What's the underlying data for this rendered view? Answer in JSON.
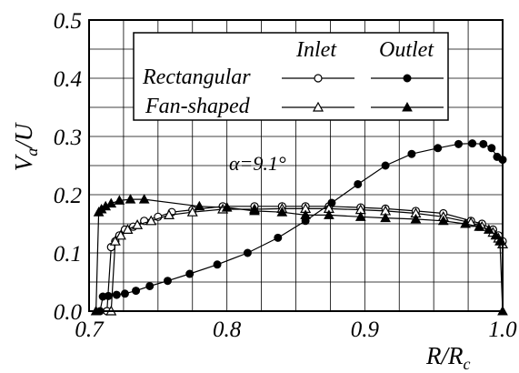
{
  "chart_data": {
    "type": "line",
    "title": "",
    "xlabel": {
      "main": "R/R",
      "sub": "c"
    },
    "ylabel": {
      "main": "V",
      "sub": "a",
      "rest": "/U"
    },
    "xlim": [
      0.7,
      1.0
    ],
    "ylim": [
      0.0,
      0.5
    ],
    "x_ticks": [
      "0.7",
      "0.8",
      "0.9",
      "1.0"
    ],
    "y_ticks": [
      "0.0",
      "0.1",
      "0.2",
      "0.3",
      "0.4",
      "0.5"
    ],
    "grid": true,
    "legend": {
      "placement": "top-center",
      "column_headers": [
        "Inlet",
        "Outlet"
      ],
      "row_labels": [
        "Rectangular",
        "Fan-shaped"
      ]
    },
    "annotation": "α=9.1°",
    "series": [
      {
        "name": "Rectangular Inlet",
        "marker": "open-circle",
        "points": [
          [
            0.713,
            0.0
          ],
          [
            0.716,
            0.11
          ],
          [
            0.719,
            0.12
          ],
          [
            0.722,
            0.13
          ],
          [
            0.726,
            0.14
          ],
          [
            0.732,
            0.145
          ],
          [
            0.74,
            0.155
          ],
          [
            0.75,
            0.162
          ],
          [
            0.76,
            0.17
          ],
          [
            0.775,
            0.174
          ],
          [
            0.797,
            0.18
          ],
          [
            0.82,
            0.18
          ],
          [
            0.84,
            0.18
          ],
          [
            0.857,
            0.18
          ],
          [
            0.874,
            0.18
          ],
          [
            0.897,
            0.178
          ],
          [
            0.915,
            0.176
          ],
          [
            0.937,
            0.172
          ],
          [
            0.957,
            0.168
          ],
          [
            0.977,
            0.155
          ],
          [
            0.985,
            0.15
          ],
          [
            0.993,
            0.14
          ],
          [
            0.997,
            0.13
          ],
          [
            1.0,
            0.12
          ]
        ]
      },
      {
        "name": "Fan-shaped Inlet",
        "marker": "open-triangle",
        "points": [
          [
            0.716,
            0.0
          ],
          [
            0.719,
            0.12
          ],
          [
            0.723,
            0.13
          ],
          [
            0.728,
            0.14
          ],
          [
            0.735,
            0.148
          ],
          [
            0.745,
            0.155
          ],
          [
            0.758,
            0.165
          ],
          [
            0.775,
            0.17
          ],
          [
            0.797,
            0.175
          ],
          [
            0.82,
            0.175
          ],
          [
            0.84,
            0.176
          ],
          [
            0.857,
            0.176
          ],
          [
            0.874,
            0.176
          ],
          [
            0.897,
            0.174
          ],
          [
            0.915,
            0.172
          ],
          [
            0.937,
            0.168
          ],
          [
            0.957,
            0.162
          ],
          [
            0.977,
            0.152
          ],
          [
            0.985,
            0.145
          ],
          [
            0.993,
            0.135
          ],
          [
            0.997,
            0.125
          ],
          [
            1.0,
            0.115
          ]
        ]
      },
      {
        "name": "Rectangular Outlet",
        "marker": "filled-circle",
        "points": [
          [
            0.708,
            0.0
          ],
          [
            0.71,
            0.025
          ],
          [
            0.714,
            0.026
          ],
          [
            0.72,
            0.028
          ],
          [
            0.726,
            0.03
          ],
          [
            0.734,
            0.035
          ],
          [
            0.744,
            0.043
          ],
          [
            0.757,
            0.052
          ],
          [
            0.773,
            0.064
          ],
          [
            0.793,
            0.08
          ],
          [
            0.815,
            0.1
          ],
          [
            0.837,
            0.126
          ],
          [
            0.857,
            0.155
          ],
          [
            0.876,
            0.186
          ],
          [
            0.895,
            0.218
          ],
          [
            0.915,
            0.25
          ],
          [
            0.934,
            0.27
          ],
          [
            0.953,
            0.28
          ],
          [
            0.968,
            0.287
          ],
          [
            0.978,
            0.288
          ],
          [
            0.986,
            0.287
          ],
          [
            0.992,
            0.28
          ],
          [
            0.996,
            0.265
          ],
          [
            1.0,
            0.26
          ]
        ]
      },
      {
        "name": "Fan-shaped Outlet",
        "marker": "filled-triangle",
        "points": [
          [
            0.705,
            0.0
          ],
          [
            0.707,
            0.17
          ],
          [
            0.709,
            0.175
          ],
          [
            0.712,
            0.18
          ],
          [
            0.716,
            0.185
          ],
          [
            0.722,
            0.19
          ],
          [
            0.73,
            0.192
          ],
          [
            0.74,
            0.192
          ],
          [
            0.78,
            0.18
          ],
          [
            0.8,
            0.178
          ],
          [
            0.82,
            0.172
          ],
          [
            0.84,
            0.17
          ],
          [
            0.857,
            0.165
          ],
          [
            0.874,
            0.165
          ],
          [
            0.897,
            0.162
          ],
          [
            0.915,
            0.16
          ],
          [
            0.937,
            0.158
          ],
          [
            0.957,
            0.155
          ],
          [
            0.973,
            0.15
          ],
          [
            0.983,
            0.145
          ],
          [
            0.99,
            0.14
          ],
          [
            0.995,
            0.13
          ],
          [
            0.998,
            0.12
          ],
          [
            1.0,
            0.0
          ]
        ]
      }
    ]
  }
}
